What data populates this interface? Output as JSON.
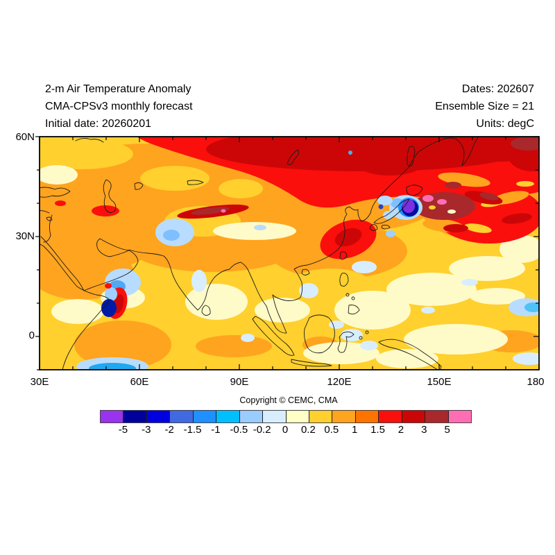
{
  "header": {
    "title_line1": "2-m Air Temperature Anomaly",
    "title_line2": "CMA-CPSv3 monthly forecast",
    "title_line3": "Initial date: 20260201",
    "dates_label": "Dates: 202607",
    "ensemble_label": "Ensemble Size = 21",
    "units_label": "Units: degC"
  },
  "map": {
    "x_axis": {
      "labels": [
        "30E",
        "60E",
        "90E",
        "120E",
        "150E",
        "180"
      ]
    },
    "y_axis": {
      "labels": [
        "60N",
        "30N",
        "0"
      ]
    }
  },
  "footer": {
    "copyright": "Copyright © CEMC, CMA"
  },
  "colorbar": {
    "levels": [
      "-5",
      "-3",
      "-2",
      "-1.5",
      "-1",
      "-0.5",
      "-0.2",
      "0",
      "0.2",
      "0.5",
      "1",
      "1.5",
      "2",
      "3",
      "5"
    ],
    "colors": [
      "#9933EE",
      "#00009B",
      "#0000E0",
      "#4169E1",
      "#1E90FF",
      "#00BFFF",
      "#99CCFF",
      "#D8EEFF",
      "#FFFFC8",
      "#FFD02E",
      "#FFA41E",
      "#FF7300",
      "#FA0F0C",
      "#CC0606",
      "#A8282C",
      "#FF6EB4"
    ]
  },
  "chart_data": {
    "type": "heatmap",
    "title": "2-m Air Temperature Anomaly",
    "subtitle": "CMA-CPSv3 monthly forecast",
    "initial_date": "20260201",
    "forecast_month": "202607",
    "ensemble_size": 21,
    "units": "degC",
    "x_range_deg_east": [
      30,
      180
    ],
    "y_range_deg_north": [
      -10,
      60
    ],
    "x_tick_labels": [
      "30E",
      "60E",
      "90E",
      "120E",
      "150E",
      "180"
    ],
    "y_tick_labels": [
      "60N",
      "30N",
      "0"
    ],
    "anomaly_levels_degC": [
      -5,
      -3,
      -2,
      -1.5,
      -1,
      -0.5,
      -0.2,
      0,
      0.2,
      0.5,
      1,
      1.5,
      2,
      3,
      5
    ],
    "palette_hex": [
      "#9933EE",
      "#00009B",
      "#0000E0",
      "#4169E1",
      "#1E90FF",
      "#00BFFF",
      "#99CCFF",
      "#D8EEFF",
      "#FFFFC8",
      "#FFD02E",
      "#FFA41E",
      "#FF7300",
      "#FA0F0C",
      "#CC0606",
      "#A8282C",
      "#FF6EB4"
    ],
    "notable_features": [
      "Strong warm anomaly (+1.5 to +3 degC, red to dark red) across Siberia and northeast Asia 45N-60N",
      "Moderate warm anomaly (+0.5 to +1.5, orange) over most of continental Asia and Arabia",
      "Dark-red/brown warm streak with small pink maximum along the Himalaya-Tien Shan belt near 70E-92E 36N-40N",
      "Deep cold anomaly core (below -5, purple ringed by navy and blue) over northern Japan near 140E 40N",
      "Warm maxima above +5 (pink spots in brown-red area) east of Japan near 148E-152E 40N with red streaks across the northwest Pacific to 180",
      "Warm/cold dipole off the Somalia coast near 52E 0N-12N (red crescent beside dark blue)",
      "Weak cool patches (-0.2 to -1, light blue) over Pakistan/NW India, tropical ocean spots, and near the southwest and east edges",
      "Near-neutral to slightly warm (0 to +0.5, pale yellow to gold) tropical Indian Ocean and western Pacific"
    ]
  }
}
